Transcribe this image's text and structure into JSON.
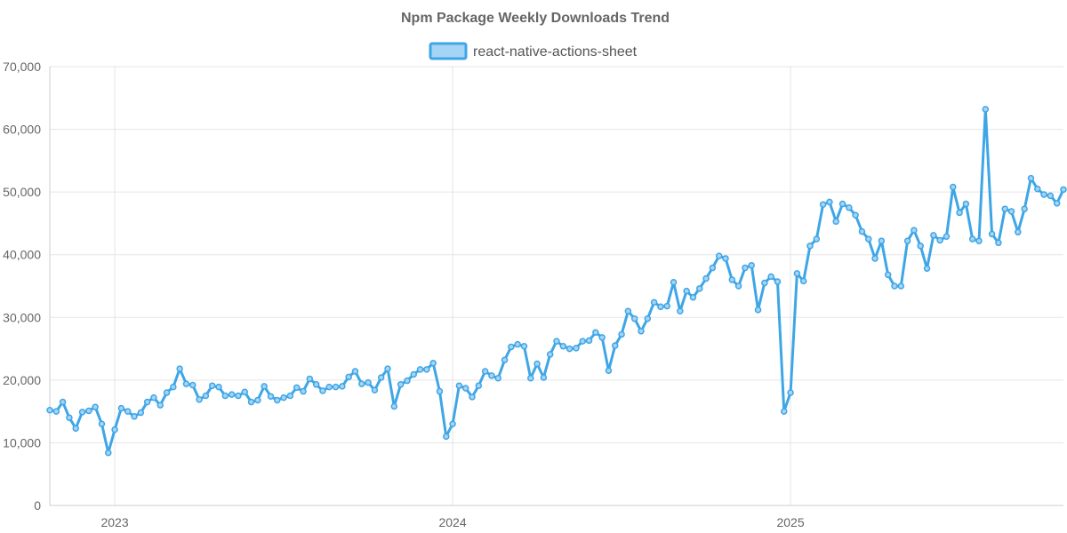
{
  "chart_data": {
    "type": "line",
    "title": "Npm Package Weekly Downloads Trend",
    "xlabel": "",
    "ylabel": "",
    "ylim": [
      0,
      70000
    ],
    "y_ticks": [
      0,
      10000,
      20000,
      30000,
      40000,
      50000,
      60000,
      70000
    ],
    "y_tick_labels": [
      "0",
      "10,000",
      "20,000",
      "30,000",
      "40,000",
      "50,000",
      "60,000",
      "70,000"
    ],
    "x_ticks": [
      {
        "label": "2023",
        "index": 10
      },
      {
        "label": "2024",
        "index": 62
      },
      {
        "label": "2025",
        "index": 114
      }
    ],
    "legend_position": "top-center",
    "colors": {
      "line": "#3ea6e6",
      "fill": "#a6d4f5"
    },
    "series": [
      {
        "name": "react-native-actions-sheet",
        "values": [
          15200,
          15000,
          16500,
          14000,
          12300,
          14900,
          15100,
          15700,
          13000,
          8400,
          12100,
          15500,
          15000,
          14200,
          14800,
          16500,
          17200,
          16000,
          18000,
          18900,
          21800,
          19400,
          19200,
          16900,
          17500,
          19100,
          18900,
          17500,
          17700,
          17500,
          18100,
          16500,
          16800,
          19000,
          17400,
          16800,
          17200,
          17500,
          18800,
          18200,
          20200,
          19300,
          18300,
          18900,
          18900,
          19000,
          20500,
          21400,
          19400,
          19600,
          18400,
          20400,
          21800,
          15800,
          19300,
          19900,
          20900,
          21700,
          21700,
          22700,
          18200,
          11000,
          13000,
          19100,
          18700,
          17300,
          19100,
          21400,
          20700,
          20300,
          23200,
          25300,
          25700,
          25400,
          20300,
          22600,
          20400,
          24100,
          26200,
          25400,
          25000,
          25100,
          26200,
          26300,
          27600,
          26800,
          21500,
          25500,
          27300,
          31000,
          29800,
          27800,
          29800,
          32400,
          31700,
          31800,
          35600,
          31000,
          34200,
          33200,
          34600,
          36200,
          37900,
          39800,
          39400,
          36000,
          35000,
          37900,
          38300,
          31200,
          35500,
          36500,
          35700,
          15000,
          18000,
          37000,
          35800,
          41400,
          42500,
          48000,
          48400,
          45300,
          48100,
          47500,
          46300,
          43700,
          42500,
          39400,
          42200,
          36800,
          35000,
          35000,
          42200,
          43900,
          41400,
          37800,
          43100,
          42300,
          42900,
          50800,
          46700,
          48100,
          42500,
          42200,
          63200,
          43300,
          41900,
          47300,
          46900,
          43600,
          47300,
          52200,
          50500,
          49600,
          49400,
          48200,
          50400
        ]
      }
    ]
  }
}
